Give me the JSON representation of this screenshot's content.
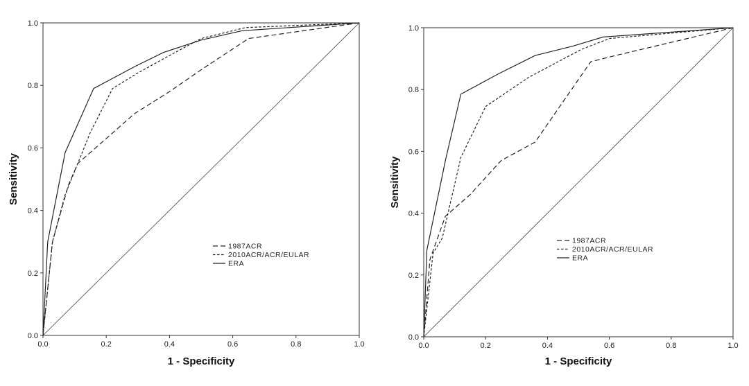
{
  "chart_data": [
    {
      "type": "line",
      "xlabel": "1 - Specificity",
      "ylabel": "Sensitivity",
      "xlim": [
        0,
        1
      ],
      "ylim": [
        0,
        1
      ],
      "xticks": [
        "0.0",
        "0.2",
        "0.4",
        "0.6",
        "0.8",
        "1.0"
      ],
      "yticks": [
        "0.0",
        "0.2",
        "0.4",
        "0.6",
        "0.8",
        "1.0"
      ],
      "grid": false,
      "legend_position": "lower-right",
      "series": [
        {
          "name": "1987ACR",
          "dash": "long-dash",
          "x": [
            0,
            0.03,
            0.08,
            0.11,
            0.2,
            0.29,
            0.4,
            0.5,
            0.65,
            1.0
          ],
          "y": [
            0,
            0.3,
            0.48,
            0.55,
            0.63,
            0.71,
            0.78,
            0.85,
            0.95,
            1.0
          ]
        },
        {
          "name": "2010ACR/ACR/EULAR",
          "dash": "short-dash",
          "x": [
            0,
            0.03,
            0.07,
            0.15,
            0.22,
            0.3,
            0.39,
            0.5,
            0.64,
            1.0
          ],
          "y": [
            0,
            0.3,
            0.45,
            0.65,
            0.79,
            0.84,
            0.89,
            0.95,
            0.985,
            1.0
          ]
        },
        {
          "name": "ERA",
          "dash": "solid",
          "x": [
            0,
            0.015,
            0.07,
            0.16,
            0.29,
            0.38,
            0.5,
            0.63,
            1.0
          ],
          "y": [
            0,
            0.3,
            0.585,
            0.79,
            0.86,
            0.905,
            0.945,
            0.975,
            1.0
          ]
        }
      ]
    },
    {
      "type": "line",
      "xlabel": "1 - Specificity",
      "ylabel": "Sensitivity",
      "xlim": [
        0,
        1
      ],
      "ylim": [
        0,
        1
      ],
      "xticks": [
        "0.0",
        "0.2",
        "0.4",
        "0.6",
        "0.8",
        "1.0"
      ],
      "yticks": [
        "0.0",
        "0.2",
        "0.4",
        "0.6",
        "0.8",
        "1.0"
      ],
      "grid": false,
      "legend_position": "lower-right",
      "series": [
        {
          "name": "1987ACR",
          "dash": "long-dash",
          "x": [
            0,
            0.02,
            0.07,
            0.15,
            0.25,
            0.36,
            0.54,
            0.62,
            1.0
          ],
          "y": [
            0,
            0.25,
            0.39,
            0.46,
            0.57,
            0.63,
            0.89,
            0.91,
            1.0
          ]
        },
        {
          "name": "2010ACR/ACR/EULAR",
          "dash": "short-dash",
          "x": [
            0,
            0.03,
            0.06,
            0.12,
            0.2,
            0.34,
            0.51,
            0.6,
            1.0
          ],
          "y": [
            0,
            0.27,
            0.32,
            0.58,
            0.745,
            0.84,
            0.93,
            0.965,
            1.0
          ]
        },
        {
          "name": "ERA",
          "dash": "solid",
          "x": [
            0,
            0.01,
            0.07,
            0.12,
            0.24,
            0.36,
            0.48,
            0.58,
            1.0
          ],
          "y": [
            0,
            0.28,
            0.57,
            0.785,
            0.85,
            0.91,
            0.94,
            0.97,
            1.0
          ]
        }
      ]
    }
  ]
}
